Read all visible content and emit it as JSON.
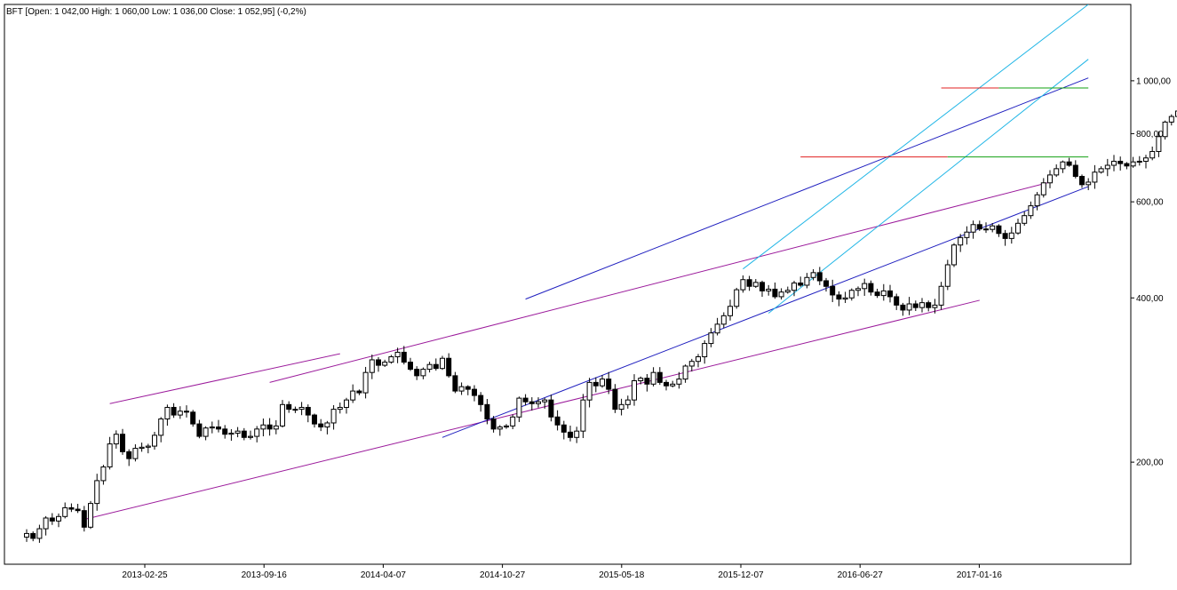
{
  "header": {
    "text": "BFT [Open: 1 042,00  High: 1 060,00  Low: 1 036,00  Close: 1 052,95] (-0,2%)"
  },
  "colors": {
    "candle": "#000000",
    "purple_line": "#9b1a9b",
    "blue_line": "#1f1fbf",
    "cyan_line": "#21b6e6",
    "red_line": "#e02020",
    "green_line": "#12a012"
  },
  "chart_data": {
    "type": "candlestick",
    "title": "BFT",
    "y_scale": "log",
    "ylim": [
      130,
      1380
    ],
    "y_ticks": [
      {
        "value": 200,
        "label": "200,00"
      },
      {
        "value": 400,
        "label": "400,00"
      },
      {
        "value": 600,
        "label": "600,00"
      },
      {
        "value": 800,
        "label": "800,00"
      },
      {
        "value": 1000,
        "label": "1 000,00"
      }
    ],
    "x_ticks": [
      "2013-02-25",
      "2013-09-16",
      "2014-04-07",
      "2014-10-27",
      "2015-05-18",
      "2015-12-07",
      "2016-06-27",
      "2017-01-16"
    ],
    "last_candle": {
      "open": 1042.0,
      "high": 1060.0,
      "low": 1036.0,
      "close": 1052.95,
      "change": "-0,2%"
    },
    "weekly_closes": [
      148,
      145,
      151,
      158,
      156,
      159,
      165,
      164,
      163,
      152,
      168,
      185,
      196,
      216,
      225,
      209,
      203,
      212,
      213,
      214,
      224,
      240,
      252,
      244,
      248,
      247,
      235,
      223,
      231,
      232,
      230,
      225,
      226,
      228,
      222,
      223,
      230,
      234,
      230,
      233,
      255,
      250,
      250,
      252,
      244,
      235,
      232,
      236,
      250,
      252,
      260,
      270,
      268,
      292,
      308,
      301,
      305,
      312,
      318,
      305,
      296,
      288,
      296,
      302,
      297,
      310,
      288,
      270,
      275,
      272,
      265,
      255,
      240,
      230,
      232,
      233,
      242,
      262,
      258,
      256,
      258,
      260,
      242,
      234,
      227,
      222,
      228,
      260,
      280,
      276,
      284,
      272,
      250,
      255,
      260,
      282,
      285,
      278,
      292,
      280,
      276,
      278,
      284,
      300,
      306,
      312,
      330,
      345,
      358,
      371,
      386,
      414,
      432,
      420,
      427,
      412,
      415,
      402,
      410,
      413,
      426,
      422,
      436,
      445,
      430,
      420,
      405,
      398,
      400,
      413,
      416,
      425,
      410,
      404,
      412,
      402,
      388,
      380,
      390,
      384,
      392,
      384,
      388,
      420,
      460,
      500,
      516,
      528,
      545,
      535,
      534,
      542,
      525,
      514,
      526,
      548,
      566,
      590,
      618,
      650,
      672,
      690,
      710,
      700,
      668,
      645,
      652,
      680,
      690,
      700,
      712,
      705,
      698,
      710,
      712,
      722,
      742,
      790,
      840,
      860,
      880,
      912,
      930,
      945,
      952,
      930,
      946,
      952,
      968,
      990,
      1010,
      1020,
      1032,
      1042,
      1055,
      1052.95
    ],
    "trendlines": [
      {
        "color": "purple",
        "from": {
          "week": 13,
          "value": 256
        },
        "to": {
          "week": 49,
          "value": 316
        },
        "note": "upper channel (left)"
      },
      {
        "color": "purple",
        "from": {
          "week": 9,
          "value": 157
        },
        "to": {
          "week": 149,
          "value": 396
        },
        "note": "lower channel (left)"
      },
      {
        "color": "purple",
        "from": {
          "week": 38,
          "value": 280
        },
        "to": {
          "week": 160,
          "value": 652
        },
        "note": "upper channel (middle)"
      },
      {
        "color": "blue",
        "from": {
          "week": 78,
          "value": 398
        },
        "to": {
          "week": 166,
          "value": 1012
        },
        "note": "upper channel (right)"
      },
      {
        "color": "blue",
        "from": {
          "week": 65,
          "value": 222
        },
        "to": {
          "week": 166,
          "value": 640
        },
        "note": "lower channel (right)"
      },
      {
        "color": "cyan",
        "from": {
          "week": 112,
          "value": 452
        },
        "to": {
          "week": 166,
          "value": 1380
        },
        "note": "steep channel top"
      },
      {
        "color": "cyan",
        "from": {
          "week": 116,
          "value": 375
        },
        "to": {
          "week": 166,
          "value": 1095
        },
        "note": "steep channel bottom"
      }
    ],
    "horizontal_levels": [
      {
        "color": "red",
        "value": 725,
        "from_week": 121,
        "to_week": 144
      },
      {
        "color": "green",
        "value": 725,
        "from_week": 144,
        "to_week": 166
      },
      {
        "color": "red",
        "value": 970,
        "from_week": 143,
        "to_week": 152
      },
      {
        "color": "green",
        "value": 970,
        "from_week": 152,
        "to_week": 166
      }
    ]
  }
}
